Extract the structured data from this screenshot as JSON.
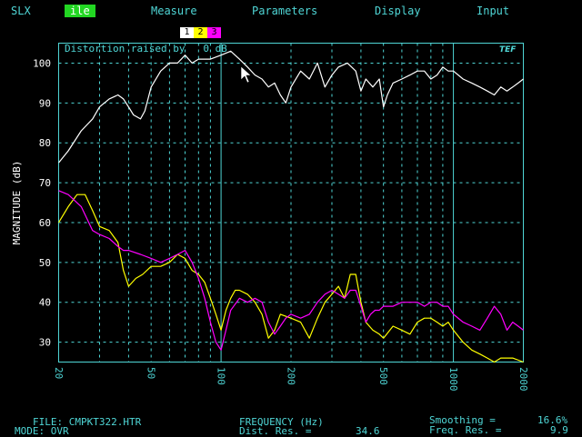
{
  "menu": {
    "items": [
      {
        "label": "SLX",
        "selected": false
      },
      {
        "label": "ile",
        "selected": true
      },
      {
        "label": "Measure",
        "selected": false
      },
      {
        "label": "Parameters",
        "selected": false
      },
      {
        "label": "Display",
        "selected": false
      },
      {
        "label": "Input",
        "selected": false
      }
    ]
  },
  "trace_tabs": [
    {
      "label": "1",
      "color": "#ffffff"
    },
    {
      "label": "2",
      "color": "#ffff00"
    },
    {
      "label": "3",
      "color": "#ff00ff"
    }
  ],
  "plot": {
    "annotation": "Distortion raised by   0 dB",
    "logo": "TEF"
  },
  "chart_data": {
    "type": "line",
    "title": "Distortion raised by   0 dB",
    "xlabel": "FREQUENCY (Hz)",
    "ylabel": "MAGNITUDE (dB)",
    "xscale": "log",
    "xlim": [
      20,
      2000
    ],
    "ylim": [
      25,
      105
    ],
    "x_ticks": [
      20,
      50,
      100,
      200,
      500,
      1000,
      2000
    ],
    "y_ticks": [
      30,
      40,
      50,
      60,
      70,
      80,
      90,
      100
    ],
    "grid": true,
    "series": [
      {
        "color": "#ffffff",
        "points": [
          [
            20,
            75
          ],
          [
            22,
            78
          ],
          [
            25,
            83
          ],
          [
            28,
            86
          ],
          [
            30,
            89
          ],
          [
            33,
            91
          ],
          [
            36,
            92
          ],
          [
            38,
            91
          ],
          [
            40,
            89
          ],
          [
            42,
            87
          ],
          [
            45,
            86
          ],
          [
            47,
            88
          ],
          [
            50,
            94
          ],
          [
            55,
            98
          ],
          [
            60,
            100
          ],
          [
            65,
            100
          ],
          [
            70,
            102
          ],
          [
            75,
            100
          ],
          [
            80,
            101
          ],
          [
            90,
            101
          ],
          [
            100,
            102
          ],
          [
            110,
            103
          ],
          [
            120,
            101
          ],
          [
            130,
            99
          ],
          [
            140,
            97
          ],
          [
            150,
            96
          ],
          [
            160,
            94
          ],
          [
            170,
            95
          ],
          [
            180,
            92
          ],
          [
            190,
            90
          ],
          [
            200,
            94
          ],
          [
            220,
            98
          ],
          [
            240,
            96
          ],
          [
            260,
            100
          ],
          [
            280,
            94
          ],
          [
            300,
            97
          ],
          [
            320,
            99
          ],
          [
            350,
            100
          ],
          [
            380,
            98
          ],
          [
            400,
            93
          ],
          [
            420,
            96
          ],
          [
            450,
            94
          ],
          [
            480,
            96
          ],
          [
            500,
            89
          ],
          [
            520,
            92
          ],
          [
            550,
            95
          ],
          [
            600,
            96
          ],
          [
            650,
            97
          ],
          [
            700,
            98
          ],
          [
            750,
            98
          ],
          [
            800,
            96
          ],
          [
            850,
            97
          ],
          [
            900,
            99
          ],
          [
            950,
            98
          ],
          [
            1000,
            98
          ],
          [
            1100,
            96
          ],
          [
            1200,
            95
          ],
          [
            1300,
            94
          ],
          [
            1400,
            93
          ],
          [
            1500,
            92
          ],
          [
            1600,
            94
          ],
          [
            1700,
            93
          ],
          [
            1800,
            94
          ],
          [
            1900,
            95
          ],
          [
            2000,
            96
          ]
        ]
      },
      {
        "color": "#ffff00",
        "points": [
          [
            20,
            60
          ],
          [
            22,
            64
          ],
          [
            24,
            67
          ],
          [
            26,
            67
          ],
          [
            28,
            63
          ],
          [
            30,
            59
          ],
          [
            33,
            58
          ],
          [
            36,
            55
          ],
          [
            38,
            48
          ],
          [
            40,
            44
          ],
          [
            43,
            46
          ],
          [
            46,
            47
          ],
          [
            50,
            49
          ],
          [
            55,
            49
          ],
          [
            60,
            50
          ],
          [
            65,
            52
          ],
          [
            70,
            51
          ],
          [
            75,
            48
          ],
          [
            80,
            47
          ],
          [
            85,
            45
          ],
          [
            90,
            41
          ],
          [
            95,
            37
          ],
          [
            100,
            33
          ],
          [
            105,
            38
          ],
          [
            110,
            41
          ],
          [
            115,
            43
          ],
          [
            120,
            43
          ],
          [
            130,
            42
          ],
          [
            140,
            40
          ],
          [
            150,
            37
          ],
          [
            160,
            31
          ],
          [
            170,
            33
          ],
          [
            180,
            37
          ],
          [
            200,
            36
          ],
          [
            220,
            35
          ],
          [
            240,
            31
          ],
          [
            260,
            36
          ],
          [
            280,
            40
          ],
          [
            300,
            42
          ],
          [
            320,
            44
          ],
          [
            340,
            41
          ],
          [
            360,
            47
          ],
          [
            380,
            47
          ],
          [
            400,
            40
          ],
          [
            420,
            35
          ],
          [
            450,
            33
          ],
          [
            480,
            32
          ],
          [
            500,
            31
          ],
          [
            550,
            34
          ],
          [
            600,
            33
          ],
          [
            650,
            32
          ],
          [
            700,
            35
          ],
          [
            750,
            36
          ],
          [
            800,
            36
          ],
          [
            850,
            35
          ],
          [
            900,
            34
          ],
          [
            950,
            35
          ],
          [
            1000,
            33
          ],
          [
            1100,
            30
          ],
          [
            1200,
            28
          ],
          [
            1300,
            27
          ],
          [
            1400,
            26
          ],
          [
            1500,
            25
          ],
          [
            1600,
            26
          ],
          [
            1700,
            26
          ],
          [
            1800,
            26
          ],
          [
            2000,
            25
          ]
        ]
      },
      {
        "color": "#ff00ff",
        "points": [
          [
            20,
            68
          ],
          [
            22,
            67
          ],
          [
            25,
            64
          ],
          [
            28,
            58
          ],
          [
            30,
            57
          ],
          [
            33,
            56
          ],
          [
            36,
            54
          ],
          [
            38,
            53
          ],
          [
            40,
            53
          ],
          [
            45,
            52
          ],
          [
            50,
            51
          ],
          [
            55,
            50
          ],
          [
            60,
            51
          ],
          [
            65,
            52
          ],
          [
            70,
            53
          ],
          [
            75,
            50
          ],
          [
            80,
            46
          ],
          [
            85,
            41
          ],
          [
            90,
            35
          ],
          [
            95,
            30
          ],
          [
            100,
            28
          ],
          [
            105,
            33
          ],
          [
            110,
            38
          ],
          [
            120,
            41
          ],
          [
            130,
            40
          ],
          [
            140,
            41
          ],
          [
            150,
            40
          ],
          [
            160,
            35
          ],
          [
            170,
            32
          ],
          [
            180,
            34
          ],
          [
            190,
            36
          ],
          [
            200,
            37
          ],
          [
            220,
            36
          ],
          [
            240,
            37
          ],
          [
            260,
            40
          ],
          [
            280,
            42
          ],
          [
            300,
            43
          ],
          [
            320,
            42
          ],
          [
            340,
            41
          ],
          [
            360,
            43
          ],
          [
            380,
            43
          ],
          [
            400,
            39
          ],
          [
            420,
            35
          ],
          [
            440,
            37
          ],
          [
            460,
            38
          ],
          [
            480,
            38
          ],
          [
            500,
            39
          ],
          [
            550,
            39
          ],
          [
            600,
            40
          ],
          [
            650,
            40
          ],
          [
            700,
            40
          ],
          [
            750,
            39
          ],
          [
            800,
            40
          ],
          [
            850,
            40
          ],
          [
            900,
            39
          ],
          [
            950,
            39
          ],
          [
            1000,
            37
          ],
          [
            1100,
            35
          ],
          [
            1200,
            34
          ],
          [
            1300,
            33
          ],
          [
            1400,
            36
          ],
          [
            1500,
            39
          ],
          [
            1600,
            37
          ],
          [
            1700,
            33
          ],
          [
            1800,
            35
          ],
          [
            1900,
            34
          ],
          [
            2000,
            33
          ]
        ]
      }
    ]
  },
  "status": {
    "file_label": "FILE: CMPKT322.HTR",
    "mode_label": "MODE: OVR",
    "freq_axis_label": "FREQUENCY (Hz)",
    "dist_res_label": "Dist. Res. =",
    "dist_res_value": "34.6",
    "smoothing_label": "Smoothing =",
    "smoothing_value": "16.6%",
    "freq_res_label": "Freq. Res. =",
    "freq_res_value": "9.9"
  }
}
